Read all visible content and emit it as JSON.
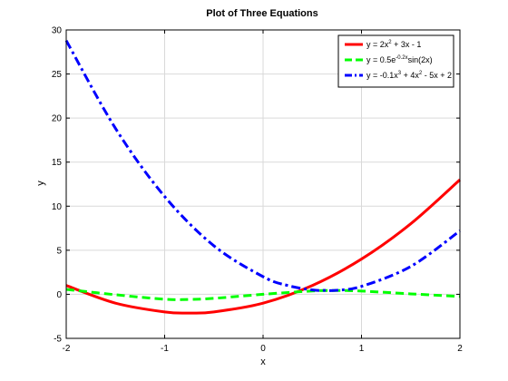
{
  "chart_data": {
    "type": "line",
    "title": "Plot of Three Equations",
    "xlabel": "x",
    "ylabel": "y",
    "xlim": [
      -2,
      2
    ],
    "ylim": [
      -5,
      30
    ],
    "xticks": [
      -2,
      -1,
      0,
      1,
      2
    ],
    "yticks": [
      -5,
      0,
      5,
      10,
      15,
      20,
      25,
      30
    ],
    "grid": true,
    "legend_position": "top-right",
    "series": [
      {
        "name": "y = 2x² + 3x - 1",
        "color": "#ff0000",
        "style": "solid",
        "x": [
          -2,
          -1.5,
          -1,
          -0.75,
          -0.5,
          0,
          0.5,
          1,
          1.5,
          2
        ],
        "y": [
          1,
          -1,
          -2,
          -2.125,
          -2,
          -1,
          1,
          4,
          8,
          13
        ]
      },
      {
        "name": "y = 0.5e^(-0.2x) sin(2x)",
        "color": "#00ff00",
        "style": "dashed",
        "x": [
          -2,
          -1.5,
          -1,
          -0.75,
          -0.5,
          0,
          0.5,
          0.75,
          1,
          1.5,
          2
        ],
        "y": [
          0.56,
          -0.05,
          -0.56,
          -0.58,
          -0.46,
          0,
          0.38,
          0.43,
          0.37,
          0.05,
          -0.25
        ]
      },
      {
        "name": "y = -0.1x³ + 4x² - 5x + 2",
        "color": "#0000ff",
        "style": "dash-dot",
        "x": [
          -2,
          -1.5,
          -1,
          -0.5,
          0,
          0.25,
          0.5,
          0.625,
          0.75,
          1,
          1.5,
          2
        ],
        "y": [
          28.8,
          18.84,
          11.1,
          5.51,
          2,
          1,
          0.49,
          0.44,
          0.46,
          0.9,
          3.16,
          7.2
        ]
      }
    ]
  },
  "legend": {
    "items": [
      {
        "prefix": "y = 2x",
        "sup": "2",
        "suffix": " + 3x - 1"
      },
      {
        "prefix": "y = 0.5e",
        "sup": "-0.2x",
        "suffix": "sin(2x)"
      },
      {
        "prefix": "y = -0.1x",
        "sup": "3",
        "mid": " + 4x",
        "sup2": "2",
        "suffix": " - 5x + 2"
      }
    ]
  }
}
